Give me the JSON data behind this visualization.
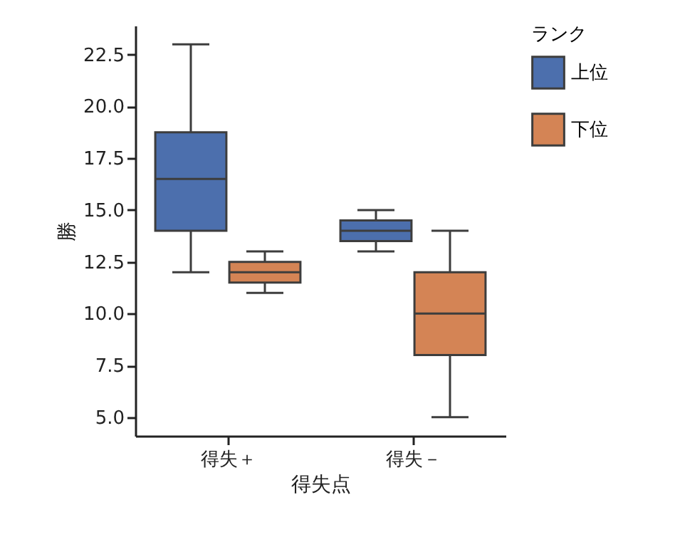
{
  "chart_data": {
    "type": "box",
    "xlabel": "得失点",
    "ylabel": "勝",
    "legend_title": "ランク",
    "legend": "right",
    "categories": [
      "得失＋",
      "得失－"
    ],
    "ylim": [
      4.1,
      23.9
    ],
    "yticks": [
      {
        "value": 5,
        "label": "5.0"
      },
      {
        "value": 7.5,
        "label": "7.5"
      },
      {
        "value": 10,
        "label": "10.0"
      },
      {
        "value": 12.5,
        "label": "12.5"
      },
      {
        "value": 15,
        "label": "15.0"
      },
      {
        "value": 17.5,
        "label": "17.5"
      },
      {
        "value": 20,
        "label": "20.0"
      },
      {
        "value": 22.5,
        "label": "22.5"
      }
    ],
    "series": [
      {
        "name": "上位",
        "color": "#4c6fad",
        "boxes": [
          {
            "low": 12,
            "q1": 14,
            "median": 16.5,
            "q3": 18.75,
            "high": 23
          },
          {
            "low": 13,
            "q1": 13.5,
            "median": 14,
            "q3": 14.5,
            "high": 15
          }
        ]
      },
      {
        "name": "下位",
        "color": "#d48455",
        "boxes": [
          {
            "low": 11,
            "q1": 11.5,
            "median": 12,
            "q3": 12.5,
            "high": 13
          },
          {
            "low": 5,
            "q1": 8,
            "median": 10,
            "q3": 12,
            "high": 14
          }
        ]
      }
    ]
  }
}
